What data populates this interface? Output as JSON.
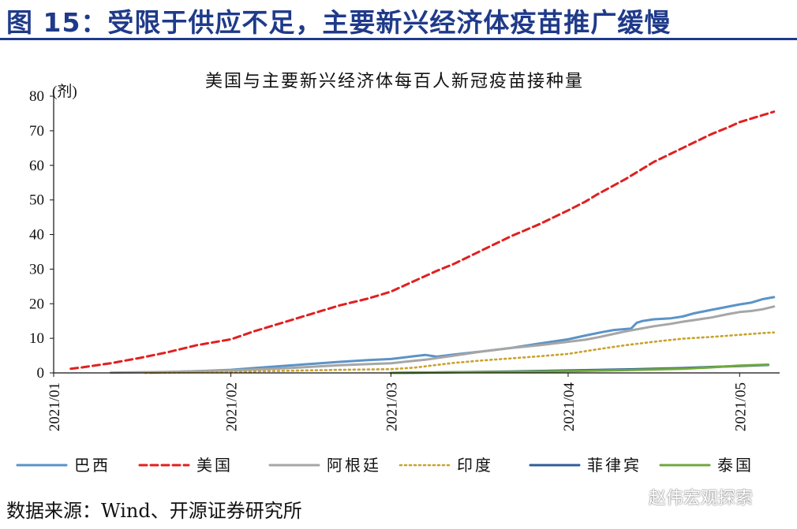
{
  "figure": {
    "title": "图 15：受限于供应不足，主要新兴经济体疫苗推广缓慢",
    "source": "数据来源：Wind、开源证券研究所",
    "watermark": "赵伟宏观探索",
    "colors": {
      "title": "#1f3a8a",
      "rule": "#1f3a8a"
    }
  },
  "chart_data": {
    "type": "line",
    "title": "美国与主要新兴经济体每百人新冠疫苗接种量",
    "ylabel": "(剂)",
    "xlabel": "",
    "ylim": [
      0,
      80
    ],
    "yticks": [
      0,
      10,
      20,
      30,
      40,
      50,
      60,
      70,
      80
    ],
    "xlim": [
      0,
      127
    ],
    "xticks": [
      {
        "label": "2021/01",
        "day": 0
      },
      {
        "label": "2021/02",
        "day": 31
      },
      {
        "label": "2021/03",
        "day": 59
      },
      {
        "label": "2021/04",
        "day": 90
      },
      {
        "label": "2021/05",
        "day": 120
      }
    ],
    "legend_position": "bottom",
    "series": [
      {
        "name": "巴西",
        "color": "#5b93c7",
        "style": "solid",
        "x": [
          17,
          25,
          31,
          35,
          40,
          45,
          50,
          55,
          59,
          63,
          65,
          67,
          70,
          75,
          80,
          85,
          90,
          93,
          96,
          98,
          101,
          102,
          103,
          105,
          108,
          110,
          112,
          115,
          120,
          122,
          124,
          126
        ],
        "y": [
          0.1,
          0.5,
          0.9,
          1.4,
          2.0,
          2.6,
          3.2,
          3.7,
          4.0,
          4.8,
          5.2,
          4.7,
          5.3,
          6.2,
          7.2,
          8.5,
          9.7,
          10.8,
          11.8,
          12.4,
          12.8,
          14.5,
          15.0,
          15.5,
          15.8,
          16.3,
          17.2,
          18.2,
          19.8,
          20.3,
          21.3,
          21.9
        ]
      },
      {
        "name": "美国",
        "color": "#e02020",
        "style": "dashed",
        "x": [
          3,
          5,
          10,
          15,
          20,
          25,
          31,
          35,
          40,
          45,
          50,
          55,
          59,
          63,
          67,
          70,
          75,
          80,
          85,
          90,
          93,
          95,
          100,
          105,
          110,
          115,
          118,
          120,
          124,
          126
        ],
        "y": [
          1.2,
          1.6,
          2.8,
          4.3,
          6.0,
          8.0,
          9.7,
          12.0,
          14.5,
          17.0,
          19.5,
          21.5,
          23.5,
          26.5,
          29.5,
          31.5,
          35.5,
          39.5,
          43.0,
          47.0,
          49.5,
          51.5,
          56.0,
          61.0,
          65.0,
          69.0,
          71.0,
          72.5,
          74.5,
          75.5
        ]
      },
      {
        "name": "阿根廷",
        "color": "#a6a6a6",
        "style": "solid",
        "x": [
          10,
          20,
          31,
          40,
          50,
          59,
          65,
          70,
          75,
          80,
          85,
          90,
          93,
          95,
          100,
          105,
          108,
          110,
          115,
          118,
          120,
          122,
          124,
          126
        ],
        "y": [
          0.1,
          0.3,
          0.7,
          1.3,
          2.2,
          2.8,
          3.8,
          5.0,
          6.2,
          7.2,
          8.0,
          9.0,
          9.6,
          10.2,
          12.0,
          13.5,
          14.2,
          14.8,
          16.0,
          17.0,
          17.6,
          17.9,
          18.4,
          19.2
        ]
      },
      {
        "name": "印度",
        "color": "#c8a22c",
        "style": "dotted",
        "x": [
          16,
          20,
          31,
          40,
          50,
          59,
          63,
          67,
          70,
          75,
          80,
          85,
          90,
          95,
          100,
          105,
          110,
          115,
          120,
          124,
          126
        ],
        "y": [
          0.0,
          0.1,
          0.3,
          0.6,
          0.9,
          1.1,
          1.5,
          2.3,
          2.9,
          3.6,
          4.2,
          4.8,
          5.5,
          6.8,
          8.0,
          9.0,
          9.9,
          10.4,
          11.0,
          11.5,
          11.7
        ]
      },
      {
        "name": "菲律宾",
        "color": "#2f5d9a",
        "style": "solid",
        "x": [
          59,
          65,
          70,
          80,
          90,
          100,
          110,
          115,
          120,
          125
        ],
        "y": [
          0.0,
          0.1,
          0.2,
          0.4,
          0.7,
          1.0,
          1.4,
          1.7,
          2.0,
          2.3
        ]
      },
      {
        "name": "泰国",
        "color": "#70a83c",
        "style": "solid",
        "x": [
          59,
          65,
          70,
          80,
          90,
          100,
          110,
          115,
          120,
          125
        ],
        "y": [
          0.0,
          0.1,
          0.2,
          0.3,
          0.5,
          0.8,
          1.2,
          1.6,
          2.1,
          2.4
        ]
      }
    ]
  }
}
